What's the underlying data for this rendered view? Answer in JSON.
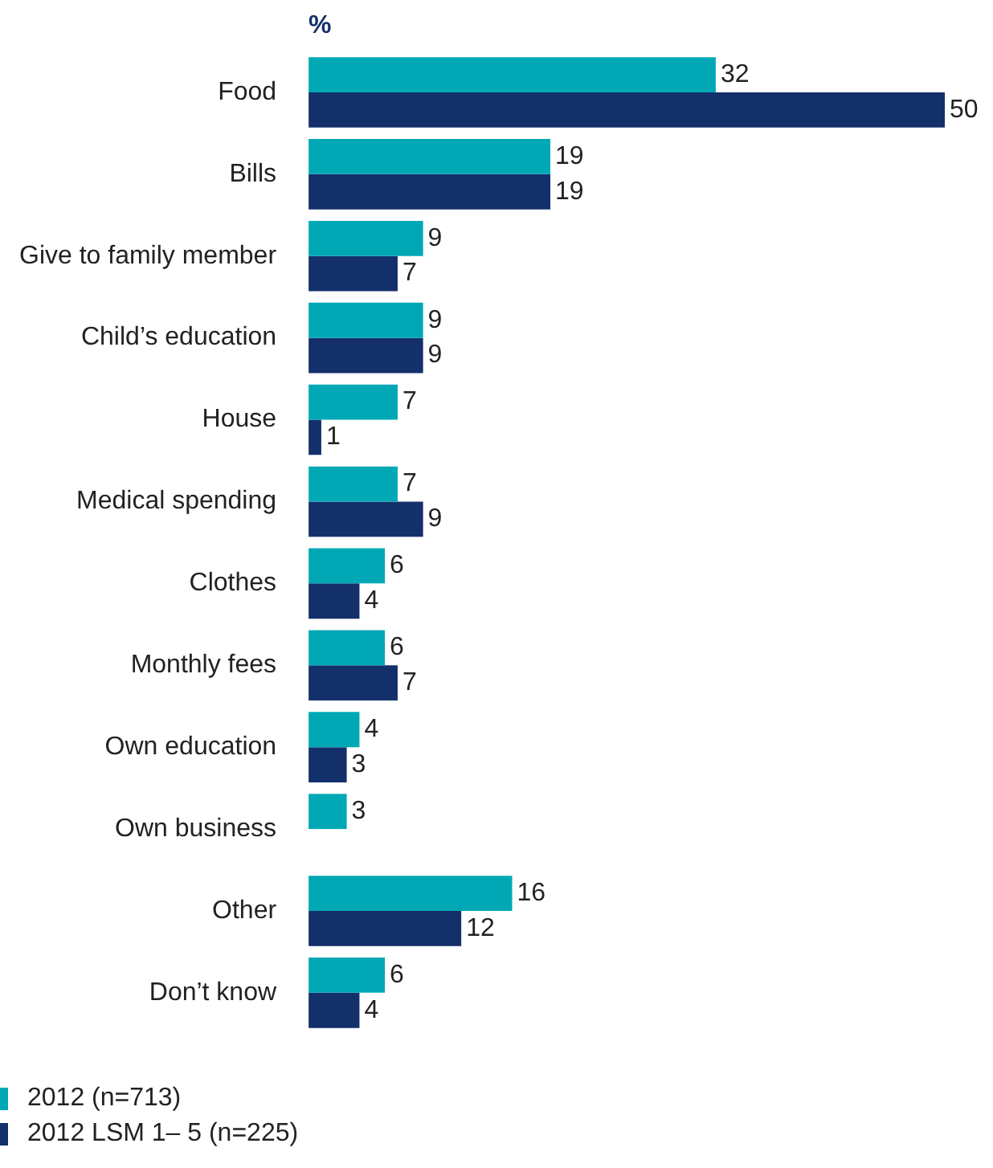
{
  "chart_data": {
    "type": "bar",
    "orientation": "horizontal",
    "title": "%",
    "data_labels": true,
    "legend": "bottom left",
    "categories": [
      "Food",
      "Bills",
      "Give to family member",
      "Child’s education",
      "House",
      "Medical spending",
      "Clothes",
      "Monthly fees",
      "Own education",
      "Own business",
      "Other",
      "Don’t know"
    ],
    "series": [
      {
        "name": "2012 (n=713)",
        "color": "#00a8b5",
        "values": [
          32,
          19,
          9,
          9,
          7,
          7,
          6,
          6,
          4,
          3,
          16,
          6
        ]
      },
      {
        "name": "2012 LSM 1– 5 (n=225)",
        "color": "#13306b",
        "values": [
          50,
          19,
          7,
          9,
          1,
          9,
          4,
          7,
          3,
          null,
          12,
          4
        ]
      }
    ]
  }
}
